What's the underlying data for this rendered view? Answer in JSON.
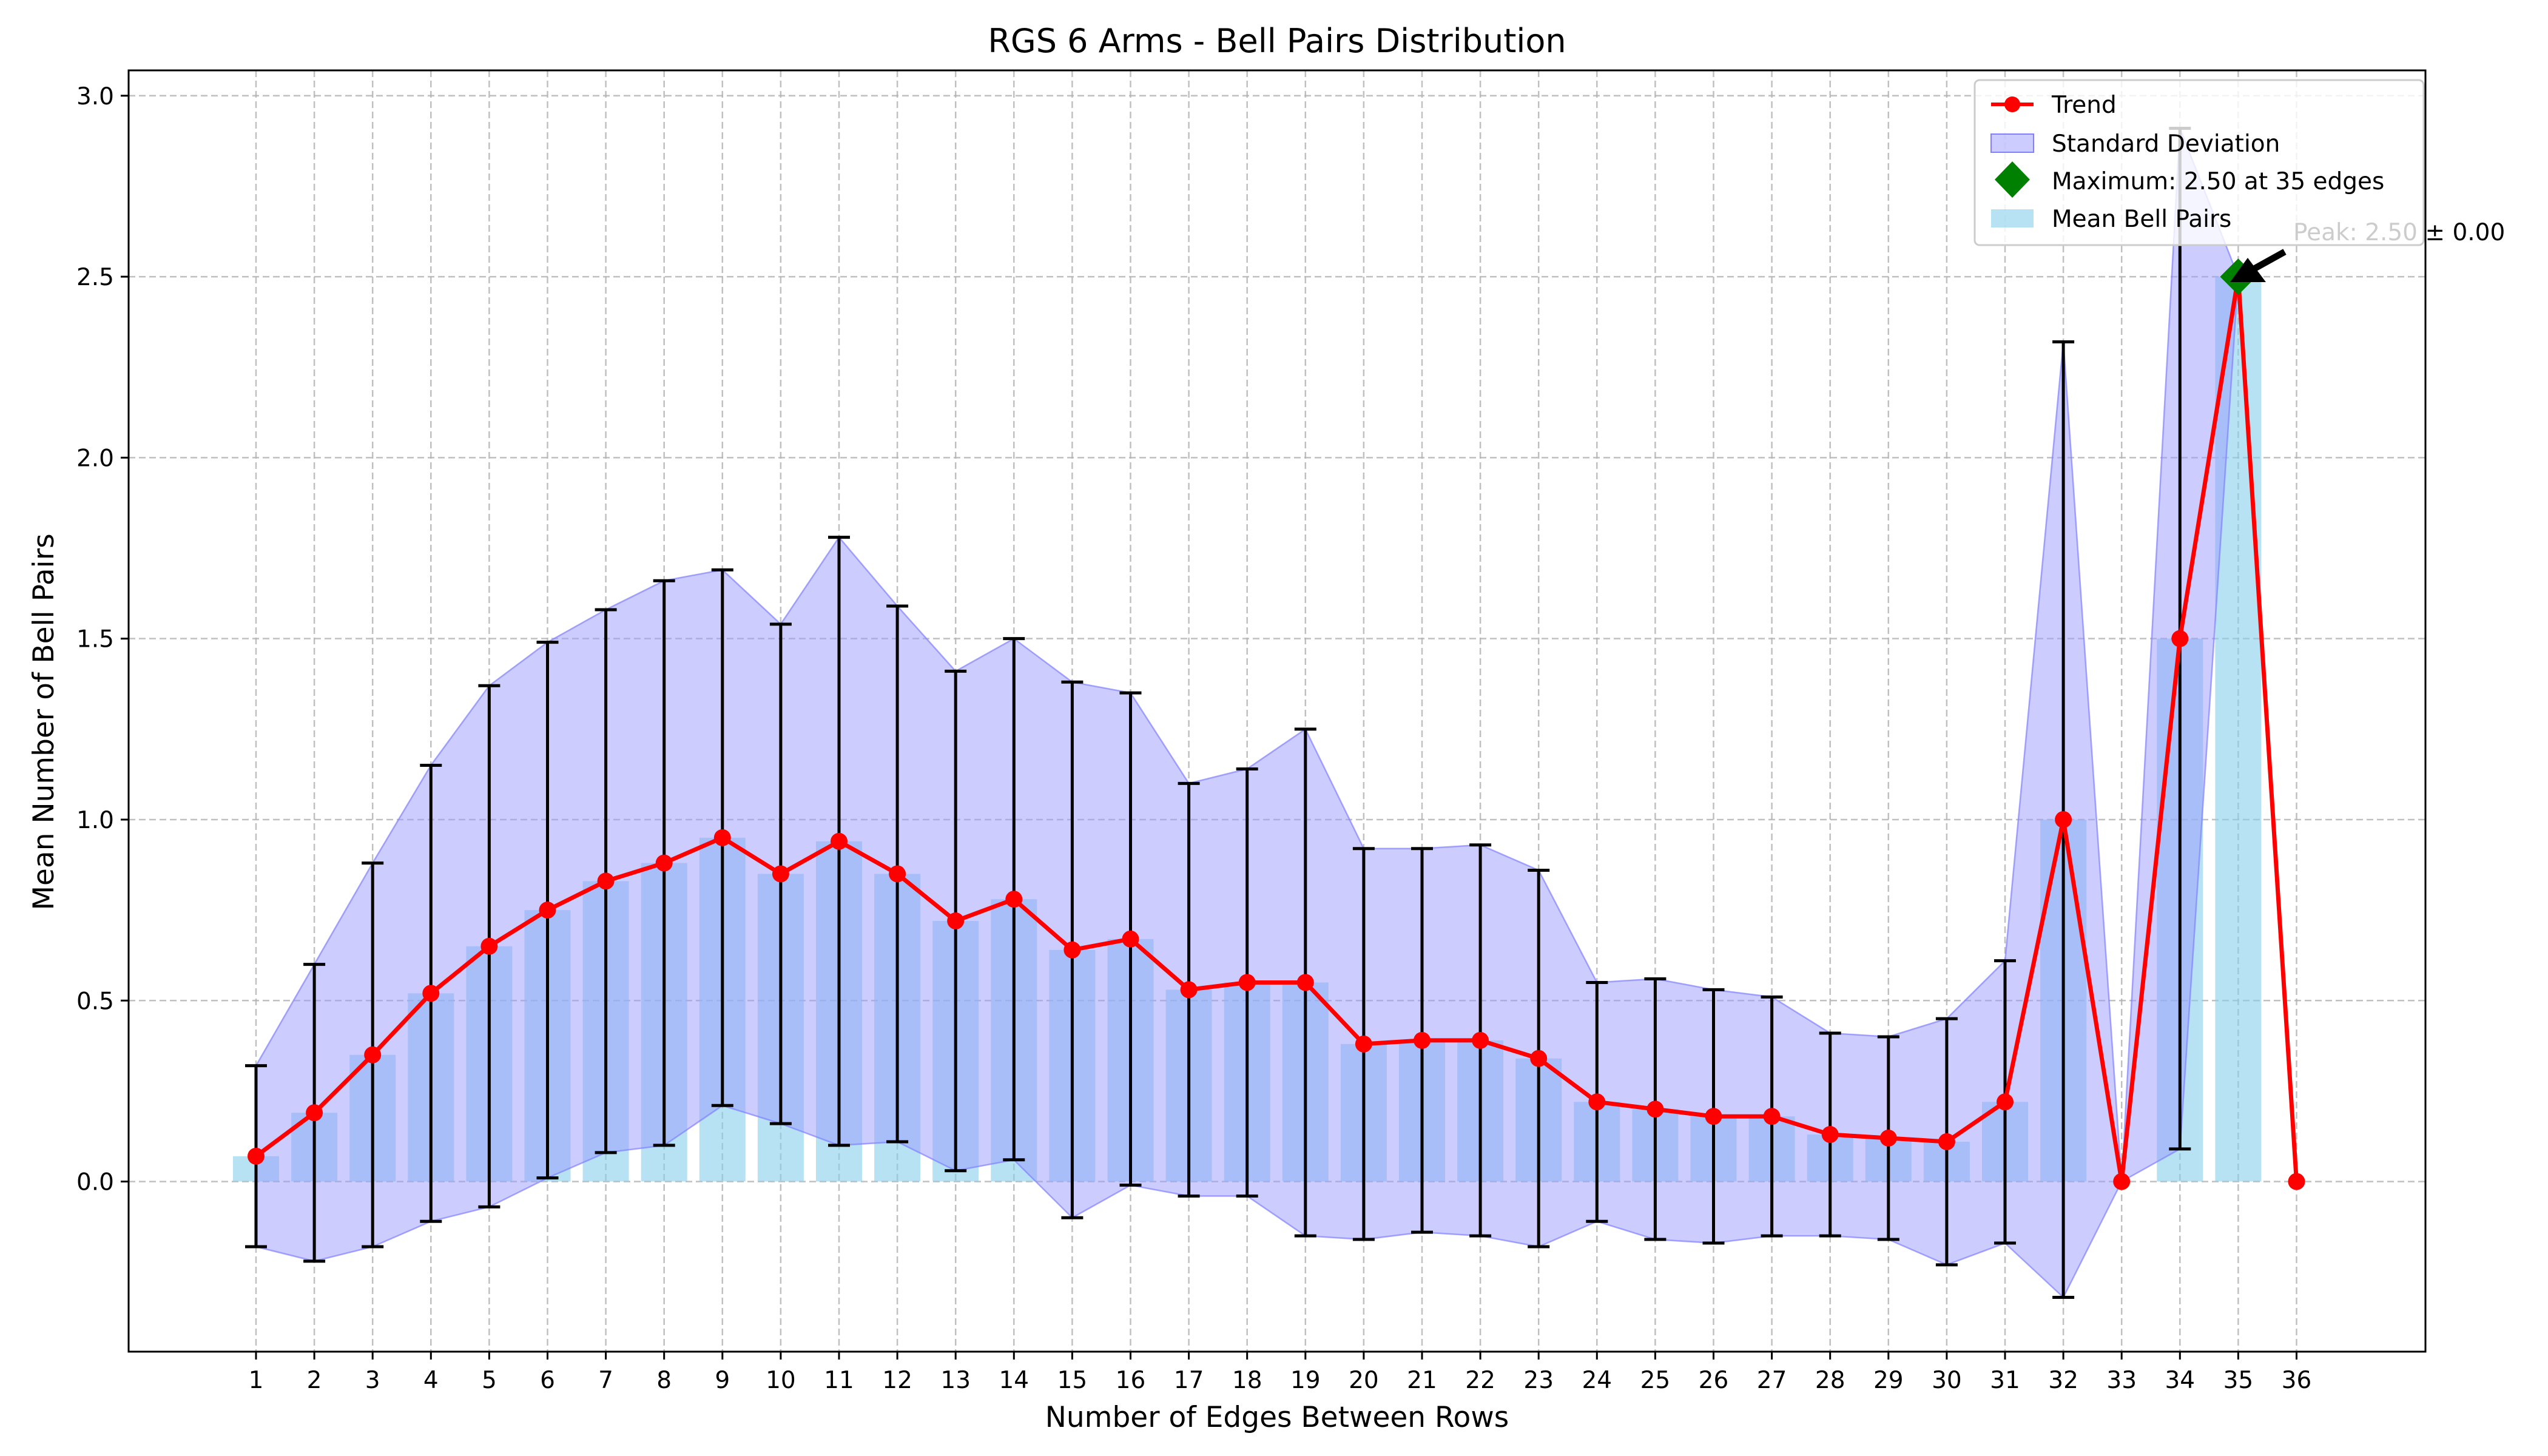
{
  "chart_data": {
    "type": "bar",
    "title": "RGS 6 Arms - Bell Pairs Distribution",
    "xlabel": "Number of Edges Between Rows",
    "ylabel": "Mean Number of Bell Pairs",
    "categories": [
      "1",
      "2",
      "3",
      "4",
      "5",
      "6",
      "7",
      "8",
      "9",
      "10",
      "11",
      "12",
      "13",
      "14",
      "15",
      "16",
      "17",
      "18",
      "19",
      "20",
      "21",
      "22",
      "23",
      "24",
      "25",
      "26",
      "27",
      "28",
      "29",
      "30",
      "31",
      "32",
      "33",
      "34",
      "35",
      "36"
    ],
    "ylim": [
      -0.47,
      3.07
    ],
    "yticks": [
      0.0,
      0.5,
      1.0,
      1.5,
      2.0,
      2.5,
      3.0
    ],
    "ytick_labels": [
      "0.0",
      "0.5",
      "1.0",
      "1.5",
      "2.0",
      "2.5",
      "3.0"
    ],
    "grid": true,
    "legend_position": "top-right",
    "legend": {
      "trend": "Trend",
      "std": "Standard Deviation",
      "max": "Maximum: 2.50 at 35 edges",
      "bars": "Mean Bell Pairs"
    },
    "series": [
      {
        "name": "Mean Bell Pairs",
        "values": [
          0.07,
          0.19,
          0.35,
          0.52,
          0.65,
          0.75,
          0.83,
          0.88,
          0.95,
          0.85,
          0.94,
          0.85,
          0.72,
          0.78,
          0.64,
          0.67,
          0.53,
          0.55,
          0.55,
          0.38,
          0.39,
          0.39,
          0.34,
          0.22,
          0.2,
          0.18,
          0.18,
          0.13,
          0.12,
          0.11,
          0.22,
          1.0,
          0.0,
          1.5,
          2.5,
          0.0
        ]
      },
      {
        "name": "Standard Deviation",
        "values": [
          0.25,
          0.41,
          0.53,
          0.63,
          0.72,
          0.74,
          0.75,
          0.78,
          0.74,
          0.69,
          0.84,
          0.74,
          0.69,
          0.72,
          0.74,
          0.68,
          0.57,
          0.59,
          0.7,
          0.54,
          0.53,
          0.54,
          0.52,
          0.33,
          0.36,
          0.35,
          0.33,
          0.28,
          0.28,
          0.34,
          0.39,
          1.32,
          0.0,
          1.41,
          0.0,
          0.0
        ]
      }
    ],
    "maximum": {
      "x": "35",
      "value": 2.5
    },
    "annotation": "Peak: 2.50 ± 0.00",
    "colors": {
      "bar": "#87ceeb",
      "trend": "#ff0000",
      "std_fill": "#9999ff",
      "std_edge": "#8080ff",
      "max_marker": "#008000",
      "grid": "#b0b0b0"
    }
  }
}
